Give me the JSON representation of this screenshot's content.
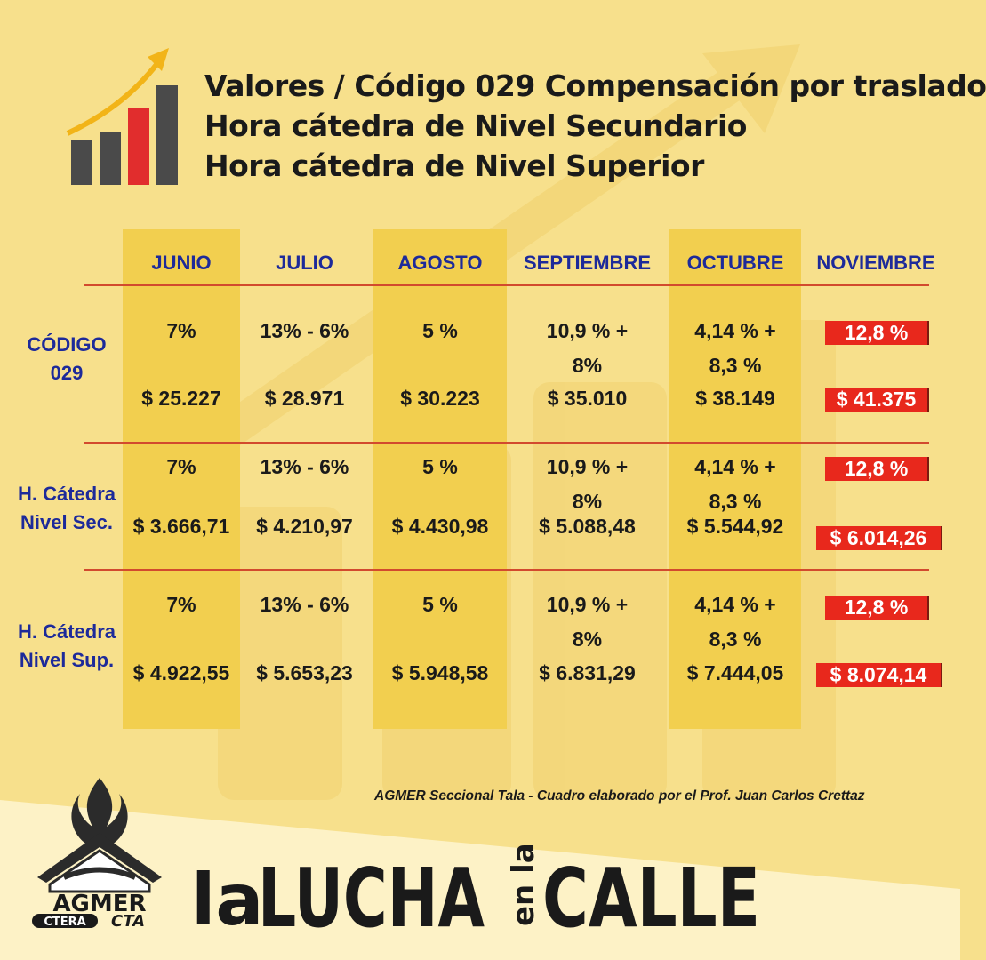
{
  "title": {
    "line1": "Valores / Código 029 Compensación por traslado",
    "line2": "Hora cátedra de Nivel Secundario",
    "line3": "Hora cátedra de Nivel Superior"
  },
  "months": [
    "JUNIO",
    "JULIO",
    "AGOSTO",
    "SEPTIEMBRE",
    "OCTUBRE",
    "NOVIEMBRE"
  ],
  "rows": [
    {
      "label": [
        "CÓDIGO",
        "029"
      ],
      "pct": [
        "7%",
        "13% - 6%",
        "5 %",
        "10,9 % +\n8%",
        "4,14 % +\n8,3 %",
        "12,8 %"
      ],
      "val": [
        "$ 25.227",
        "$ 28.971",
        "$ 30.223",
        "$ 35.010",
        "$ 38.149",
        "$ 41.375"
      ]
    },
    {
      "label": [
        "H. Cátedra",
        "Nivel Sec."
      ],
      "pct": [
        "7%",
        "13% - 6%",
        "5 %",
        "10,9 % +\n8%",
        "4,14 % +\n8,3 %",
        "12,8 %"
      ],
      "val": [
        "$ 3.666,71",
        "$ 4.210,97",
        "$ 4.430,98",
        "$ 5.088,48",
        "$ 5.544,92",
        "$ 6.014,26"
      ]
    },
    {
      "label": [
        "H. Cátedra",
        "Nivel Sup."
      ],
      "pct": [
        "7%",
        "13% - 6%",
        "5 %",
        "10,9 % +\n8%",
        "4,14 % +\n8,3 %",
        "12,8 %"
      ],
      "val": [
        "$ 4.922,55",
        "$ 5.653,23",
        "$ 5.948,58",
        "$ 6.831,29",
        "$ 7.444,05",
        "$ 8.074,14"
      ]
    }
  ],
  "credit": "AGMER Seccional Tala - Cuadro elaborado por el Prof. Juan Carlos Crettaz",
  "logo": {
    "main": "AGMER",
    "left": "CTERA",
    "right": "CTA"
  },
  "slogan": {
    "w1": "la",
    "w2": "LUCHA",
    "w3": "en la",
    "w4": "CALLE"
  },
  "colors": {
    "background": "#f7e08c",
    "band": "#f2cf4f",
    "header": "#1d2a9a",
    "highlight": "#e8281c",
    "rule": "#d24a2e"
  },
  "icons": [
    "growth-chart-icon",
    "agmer-logo"
  ]
}
